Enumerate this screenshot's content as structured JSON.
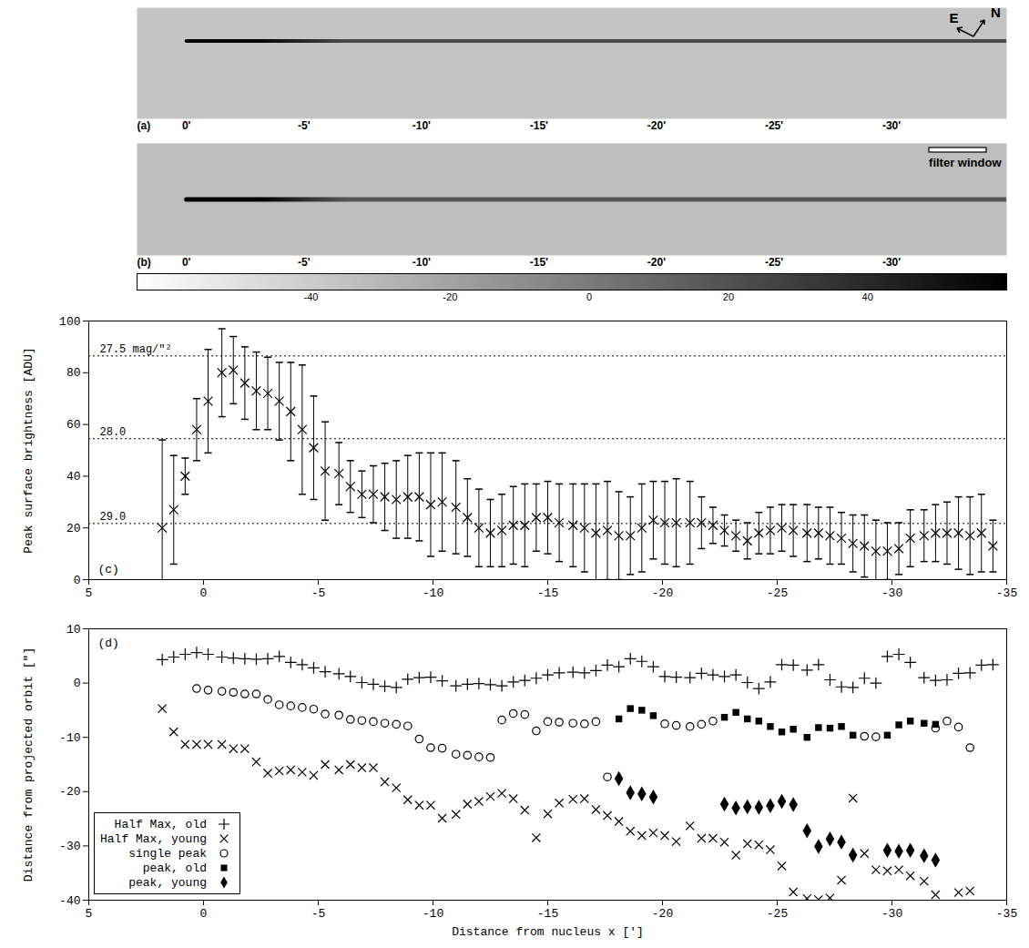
{
  "chart_data": [
    {
      "type": "image",
      "panel": "(a)",
      "xlim": [
        2.1,
        -34.9
      ],
      "xticks": [
        {
          "value": 0,
          "label": "0'"
        },
        {
          "value": -5,
          "label": "-5'"
        },
        {
          "value": -10,
          "label": "-10'"
        },
        {
          "value": -15,
          "label": "-15'"
        },
        {
          "value": -20,
          "label": "-20'"
        },
        {
          "value": -25,
          "label": "-25'"
        },
        {
          "value": -30,
          "label": "-30'"
        }
      ],
      "annotations": [
        {
          "text": "E"
        },
        {
          "text": "N"
        }
      ]
    },
    {
      "type": "image",
      "panel": "(b)",
      "xlim": [
        2.1,
        -34.9
      ],
      "xticks": [
        {
          "value": 0,
          "label": "0'"
        },
        {
          "value": -5,
          "label": "-5'"
        },
        {
          "value": -10,
          "label": "-10'"
        },
        {
          "value": -15,
          "label": "-15'"
        },
        {
          "value": -20,
          "label": "-20'"
        },
        {
          "value": -25,
          "label": "-25'"
        },
        {
          "value": -30,
          "label": "-30'"
        }
      ],
      "annotations": [
        {
          "text": "filter window"
        }
      ]
    },
    {
      "type": "colorbar",
      "xlim": [
        -65,
        60
      ],
      "xticks": [
        -40,
        -20,
        0,
        20,
        40
      ]
    },
    {
      "type": "scatter",
      "panel": "(c)",
      "ylabel": "Peak surface brightness [ADU]",
      "xlim": [
        5,
        -35
      ],
      "xticks": [
        5,
        0,
        -5,
        -10,
        -15,
        -20,
        -25,
        -30,
        -35
      ],
      "ylim": [
        0,
        100
      ],
      "yticks": [
        0,
        20,
        40,
        60,
        80,
        100
      ],
      "marker": "times",
      "color": "#000000",
      "annotations": [
        {
          "y": 86.5,
          "text": "27.5 mag/\"²"
        },
        {
          "y": 54.5,
          "text": "28.0"
        },
        {
          "y": 21.7,
          "text": "29.0"
        }
      ],
      "x": [
        1.8,
        1.3,
        0.8,
        0.3,
        -0.2,
        -0.8,
        -1.3,
        -1.8,
        -2.3,
        -2.8,
        -3.3,
        -3.8,
        -4.3,
        -4.8,
        -5.3,
        -5.9,
        -6.4,
        -6.9,
        -7.4,
        -7.9,
        -8.4,
        -8.9,
        -9.4,
        -9.9,
        -10.4,
        -11.0,
        -11.5,
        -12.0,
        -12.5,
        -13.0,
        -13.5,
        -14.0,
        -14.5,
        -15.0,
        -15.5,
        -16.1,
        -16.6,
        -17.1,
        -17.6,
        -18.1,
        -18.6,
        -19.1,
        -19.6,
        -20.1,
        -20.6,
        -21.2,
        -21.7,
        -22.2,
        -22.7,
        -23.2,
        -23.7,
        -24.2,
        -24.7,
        -25.2,
        -25.7,
        -26.3,
        -26.8,
        -27.3,
        -27.8,
        -28.3,
        -28.8,
        -29.3,
        -29.8,
        -30.3,
        -30.8,
        -31.4,
        -31.9,
        -32.4,
        -32.9,
        -33.4,
        -33.9,
        -34.4
      ],
      "values": [
        20,
        27,
        40,
        58,
        69,
        80,
        81,
        76,
        73,
        72,
        69,
        65,
        58,
        51,
        42,
        41,
        36,
        33,
        33,
        32,
        31,
        32,
        32,
        29,
        30,
        28,
        24,
        20,
        18,
        19,
        21,
        21,
        24,
        24,
        22,
        21,
        20,
        18,
        19,
        17,
        17,
        20,
        23,
        22,
        22,
        22,
        22,
        21,
        19,
        17,
        15,
        18,
        19,
        20,
        19,
        18,
        18,
        17,
        16,
        14,
        13,
        11,
        11,
        12,
        16,
        17,
        18,
        18,
        18,
        17,
        18,
        13
      ],
      "error": [
        34,
        21,
        7,
        12,
        20,
        17,
        13,
        14,
        15,
        14,
        15,
        19,
        25,
        20,
        19,
        12,
        10,
        9,
        11,
        13,
        15,
        16,
        17,
        20,
        19,
        18,
        15,
        15,
        13,
        14,
        15,
        16,
        13,
        14,
        15,
        16,
        17,
        19,
        19,
        17,
        15,
        17,
        15,
        16,
        17,
        16,
        10,
        7,
        6,
        6,
        7,
        8,
        9,
        9,
        10,
        11,
        10,
        11,
        10,
        11,
        12,
        12,
        11,
        10,
        11,
        10,
        11,
        12,
        14,
        15,
        15,
        10
      ]
    },
    {
      "type": "scatter",
      "panel": "(d)",
      "xlabel": "Distance from nucleus x [']",
      "ylabel": "Distance from projected orbit [\"]",
      "xlim": [
        5,
        -35
      ],
      "xticks": [
        5,
        0,
        -5,
        -10,
        -15,
        -20,
        -25,
        -30,
        -35
      ],
      "ylim": [
        -40,
        10
      ],
      "yticks": [
        -40,
        -30,
        -20,
        -10,
        0,
        10
      ],
      "legend": "bottom-left",
      "series": [
        {
          "name": "Half Max, old",
          "color": "#000000",
          "marker": "plus",
          "x": [
            1.8,
            1.3,
            0.8,
            0.3,
            -0.2,
            -0.8,
            -1.3,
            -1.8,
            -2.3,
            -2.8,
            -3.3,
            -3.8,
            -4.3,
            -4.8,
            -5.3,
            -5.9,
            -6.4,
            -6.9,
            -7.4,
            -7.9,
            -8.4,
            -8.9,
            -9.4,
            -9.9,
            -10.4,
            -11.0,
            -11.5,
            -12.0,
            -12.5,
            -13.0,
            -13.5,
            -14.0,
            -14.5,
            -15.0,
            -15.5,
            -16.1,
            -16.6,
            -17.1,
            -17.6,
            -18.1,
            -18.6,
            -19.1,
            -19.6,
            -20.1,
            -20.6,
            -21.2,
            -21.7,
            -22.2,
            -22.7,
            -23.2,
            -23.7,
            -24.2,
            -24.7,
            -25.2,
            -25.7,
            -26.3,
            -26.8,
            -27.3,
            -27.8,
            -28.3,
            -28.8,
            -29.3,
            -29.8,
            -30.3,
            -30.8,
            -31.4,
            -31.9,
            -32.4,
            -32.9,
            -33.4,
            -33.9,
            -34.4
          ],
          "values": [
            4.3,
            4.8,
            5.3,
            5.6,
            5.3,
            4.8,
            4.6,
            4.5,
            4.4,
            4.5,
            4.9,
            3.8,
            3.4,
            2.8,
            2.1,
            1.7,
            1.2,
            0.1,
            -0.2,
            -0.6,
            -0.8,
            0.7,
            1.0,
            1.1,
            0.4,
            -0.5,
            -0.2,
            -0.1,
            -0.3,
            -0.5,
            0.2,
            0.5,
            0.9,
            1.5,
            1.9,
            2.0,
            1.9,
            2.3,
            3.3,
            3.0,
            4.5,
            4.0,
            3.0,
            1.2,
            1.1,
            1.0,
            1.8,
            1.5,
            1.2,
            1.5,
            0.1,
            -1.0,
            0.2,
            3.4,
            3.3,
            2.4,
            3.4,
            0.6,
            -0.7,
            -0.8,
            0.9,
            0.0,
            4.9,
            5.3,
            3.8,
            1.0,
            0.5,
            0.6,
            1.8,
            1.9,
            3.3,
            3.4
          ]
        },
        {
          "name": "Half Max, young",
          "color": "#000000",
          "marker": "times",
          "x": [
            1.8,
            1.3,
            0.8,
            0.3,
            -0.2,
            -0.8,
            -1.3,
            -1.8,
            -2.3,
            -2.8,
            -3.3,
            -3.8,
            -4.3,
            -4.8,
            -5.3,
            -5.9,
            -6.4,
            -6.9,
            -7.4,
            -7.9,
            -8.4,
            -8.9,
            -9.4,
            -9.9,
            -10.4,
            -11.0,
            -11.5,
            -12.0,
            -12.5,
            -13.0,
            -13.5,
            -14.0,
            -14.5,
            -15.0,
            -15.5,
            -16.1,
            -16.6,
            -17.1,
            -17.6,
            -18.1,
            -18.6,
            -19.1,
            -19.6,
            -20.1,
            -20.6,
            -21.2,
            -21.7,
            -22.2,
            -22.7,
            -23.2,
            -23.7,
            -24.2,
            -24.7,
            -25.2,
            -25.7,
            -26.3,
            -26.8,
            -27.3,
            -27.8,
            -28.3,
            -28.8,
            -29.3,
            -29.8,
            -30.3,
            -30.8,
            -31.4,
            -31.9,
            -32.9,
            -33.4
          ],
          "values": [
            -4.7,
            -9.0,
            -11.3,
            -11.3,
            -11.3,
            -11.3,
            -12.1,
            -12.1,
            -14.5,
            -16.6,
            -16.2,
            -16.0,
            -16.4,
            -17.0,
            -15.0,
            -16.0,
            -15.0,
            -15.6,
            -15.6,
            -18.2,
            -19.3,
            -21.5,
            -22.5,
            -22.5,
            -24.9,
            -24.2,
            -22.3,
            -21.8,
            -20.9,
            -20.3,
            -21.3,
            -23.4,
            -28.5,
            -24.1,
            -22.1,
            -21.4,
            -21.3,
            -23.3,
            -24.4,
            -25.5,
            -27.3,
            -28.1,
            -27.6,
            -28.1,
            -29.2,
            -26.3,
            -28.6,
            -28.6,
            -29.3,
            -31.7,
            -29.6,
            -29.8,
            -30.7,
            -33.7,
            -38.5,
            -39.7,
            -39.9,
            -39.6,
            -36.3,
            -21.2,
            -31.4,
            -34.4,
            -34.6,
            -34.4,
            -35.5,
            -36.5,
            -39.0,
            -38.6,
            -38.3
          ]
        },
        {
          "name": "single peak",
          "color": "#000000",
          "marker": "circle",
          "x": [
            0.3,
            -0.2,
            -0.8,
            -1.3,
            -1.8,
            -2.3,
            -2.8,
            -3.3,
            -3.8,
            -4.3,
            -4.8,
            -5.3,
            -5.9,
            -6.4,
            -6.9,
            -7.4,
            -7.9,
            -8.4,
            -8.9,
            -9.4,
            -9.9,
            -10.4,
            -11.0,
            -11.5,
            -12.0,
            -12.5,
            -13.0,
            -13.5,
            -14.0,
            -14.5,
            -15.0,
            -15.5,
            -16.1,
            -16.6,
            -17.1,
            -17.6,
            -20.1,
            -20.6,
            -21.2,
            -21.7,
            -22.2,
            -28.8,
            -29.3,
            -31.9,
            -32.4,
            -32.9,
            -33.4
          ],
          "values": [
            -1.0,
            -1.3,
            -1.5,
            -1.7,
            -2.0,
            -2.0,
            -3.0,
            -4.0,
            -4.2,
            -4.5,
            -4.8,
            -5.7,
            -5.9,
            -6.7,
            -6.9,
            -7.1,
            -7.4,
            -7.6,
            -7.9,
            -10.3,
            -11.9,
            -12.0,
            -13.1,
            -13.3,
            -13.6,
            -13.7,
            -6.8,
            -5.6,
            -5.8,
            -8.8,
            -7.1,
            -7.2,
            -7.4,
            -7.5,
            -7.1,
            -17.3,
            -7.5,
            -7.8,
            -8.0,
            -7.6,
            -7.0,
            -9.8,
            -9.9,
            -8.3,
            -7.0,
            -8.1,
            -11.9
          ]
        },
        {
          "name": "peak, old",
          "color": "#000000",
          "marker": "square",
          "x": [
            -18.1,
            -18.6,
            -19.1,
            -19.6,
            -22.7,
            -23.2,
            -23.7,
            -24.2,
            -24.7,
            -25.2,
            -25.7,
            -26.3,
            -26.8,
            -27.3,
            -27.8,
            -28.3,
            -29.8,
            -30.3,
            -30.8,
            -31.4,
            -31.9
          ],
          "values": [
            -6.6,
            -4.7,
            -5.0,
            -6.0,
            -6.3,
            -5.4,
            -6.6,
            -7.0,
            -8.0,
            -9.0,
            -8.5,
            -10.0,
            -8.2,
            -8.3,
            -8.0,
            -9.6,
            -9.6,
            -7.7,
            -7.0,
            -7.4,
            -7.6
          ]
        },
        {
          "name": "peak, young",
          "color": "#000000",
          "marker": "diamond",
          "x": [
            -18.1,
            -18.6,
            -19.1,
            -19.6,
            -22.7,
            -23.2,
            -23.7,
            -24.2,
            -24.7,
            -25.2,
            -25.7,
            -26.3,
            -26.8,
            -27.3,
            -27.8,
            -28.3,
            -29.8,
            -30.3,
            -30.8,
            -31.4,
            -31.9
          ],
          "values": [
            -17.6,
            -20.2,
            -20.4,
            -21.0,
            -22.3,
            -23.0,
            -22.8,
            -22.9,
            -22.6,
            -21.8,
            -22.4,
            -27.2,
            -30.1,
            -28.7,
            -29.3,
            -31.7,
            -30.8,
            -31.0,
            -30.8,
            -31.8,
            -32.6
          ]
        }
      ]
    }
  ]
}
